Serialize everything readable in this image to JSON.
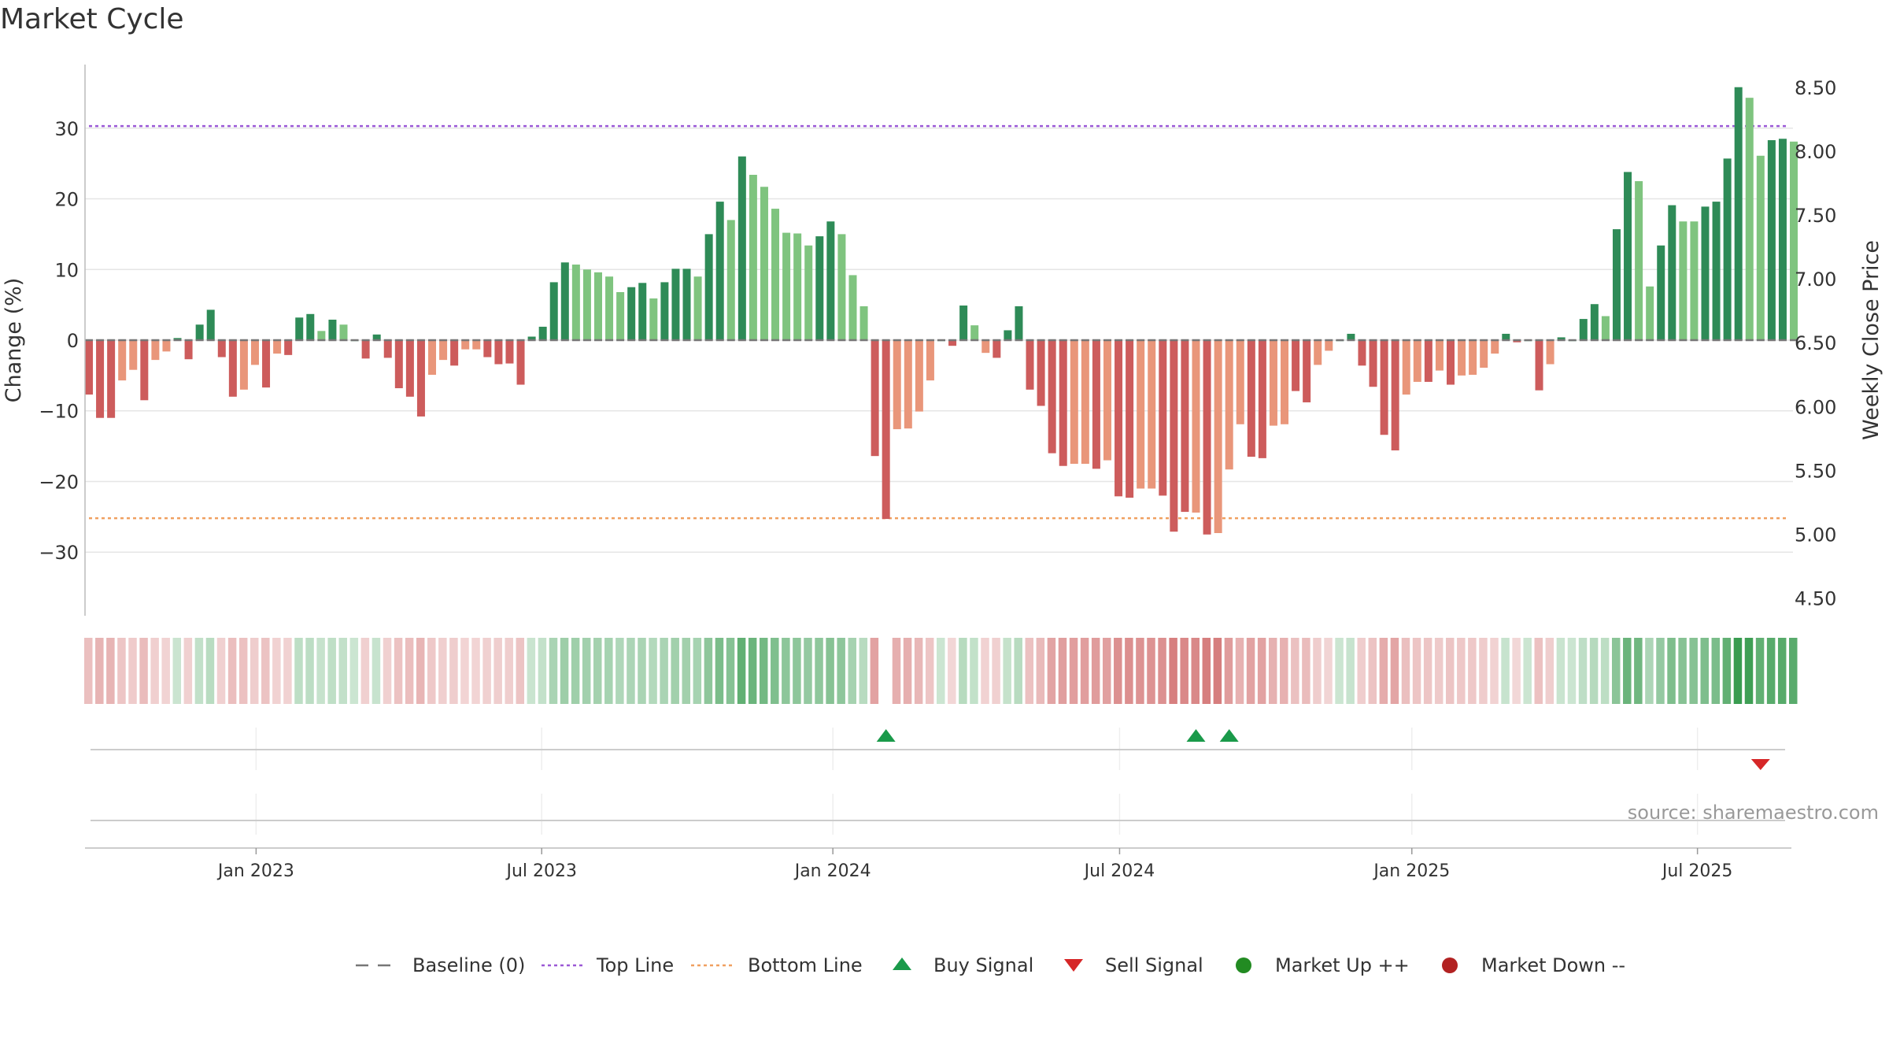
{
  "title": "Market Cycle",
  "source": "source: sharemaestro.com",
  "colors": {
    "dark_green": "#2e8b57",
    "light_green": "#7fc47f",
    "dark_red": "#cd5c5c",
    "light_red": "#e9967a",
    "top_line": "#9b59d6",
    "bottom_line": "#f0a060",
    "buy": "#1a9a4a",
    "sell": "#d62728",
    "market_up": "#228b22",
    "market_down": "#b22222",
    "baseline": "#777777"
  },
  "chart_data": {
    "type": "bar",
    "ylabel": "Change (%)",
    "y2label": "Weekly Close Price",
    "ylim": [
      -39,
      39
    ],
    "y2lim": [
      4.36,
      8.68
    ],
    "yticks": [
      30,
      20,
      10,
      0,
      -10,
      -20,
      -30
    ],
    "ytick_labels": [
      "30",
      "20",
      "10",
      "0",
      "−10",
      "−20",
      "−30"
    ],
    "y2ticks": [
      8.5,
      8.0,
      7.5,
      7.0,
      6.5,
      6.0,
      5.5,
      5.0,
      4.5
    ],
    "y2tick_labels": [
      "8.50",
      "8.00",
      "7.50",
      "7.00",
      "6.50",
      "6.00",
      "5.50",
      "5.00",
      "4.50"
    ],
    "x_start_week_index": 0,
    "xticks": [
      {
        "label": "Jan 2023",
        "week": 15.1
      },
      {
        "label": "Jul 2023",
        "week": 40.9
      },
      {
        "label": "Jan 2024",
        "week": 67.2
      },
      {
        "label": "Jul 2024",
        "week": 93.1
      },
      {
        "label": "Jan 2025",
        "week": 119.5
      },
      {
        "label": "Jul 2025",
        "week": 145.3
      }
    ],
    "top_line": 30.3,
    "bottom_line": -25.2,
    "values": [
      -7.7,
      -11,
      -11,
      -5.7,
      -4.2,
      -8.5,
      -2.8,
      -1.6,
      0.3,
      -2.7,
      2.2,
      4.3,
      -2.4,
      -8,
      -7,
      -3.5,
      -6.7,
      -1.9,
      -2.1,
      3.2,
      3.7,
      1.3,
      2.9,
      2.2,
      0,
      -2.6,
      0.8,
      -2.5,
      -6.8,
      -8,
      -10.8,
      -4.9,
      -2.8,
      -3.6,
      -1.3,
      -1.3,
      -2.4,
      -3.4,
      -3.3,
      -6.3,
      0.5,
      1.9,
      8.2,
      11,
      10.7,
      10,
      9.6,
      9,
      6.8,
      7.5,
      8.1,
      5.9,
      8.2,
      10.1,
      10.1,
      9,
      15,
      19.6,
      17,
      26,
      23.4,
      21.7,
      18.6,
      15.2,
      15.1,
      13.4,
      14.7,
      16.8,
      15,
      9.2,
      4.8,
      -16.4,
      -25.3,
      -12.6,
      -12.5,
      -10.1,
      -5.7,
      0,
      -0.8,
      4.9,
      2.1,
      -1.8,
      -2.5,
      1.4,
      4.8,
      -7,
      -9.3,
      -16,
      -17.8,
      -17.5,
      -17.5,
      -18.2,
      -17,
      -22.1,
      -22.3,
      -21,
      -21,
      -22,
      -27.1,
      -24.3,
      -24.4,
      -27.5,
      -27.3,
      -18.3,
      -11.9,
      -16.5,
      -16.7,
      -12.1,
      -11.9,
      -7.2,
      -8.8,
      -3.5,
      -1.5,
      0,
      0.9,
      -3.6,
      -6.6,
      -13.4,
      -15.6,
      -7.7,
      -5.9,
      -5.9,
      -4.3,
      -6.3,
      -5,
      -4.9,
      -3.9,
      -1.9,
      0.9,
      -0.3,
      0,
      -7.1,
      -3.4,
      0.4,
      0,
      3,
      5.1,
      3.4,
      15.7,
      23.8,
      22.5,
      7.6,
      13.4,
      19.1,
      16.8,
      16.8,
      18.9,
      19.6,
      25.7,
      35.8,
      34.3,
      26.1,
      28.3,
      28.5,
      28.1
    ],
    "bar_colors": [
      "dr",
      "dr",
      "dr",
      "lr",
      "lr",
      "dr",
      "lr",
      "lr",
      "dg",
      "dr",
      "dg",
      "dg",
      "dr",
      "dr",
      "lr",
      "lr",
      "dr",
      "lr",
      "dr",
      "dg",
      "dg",
      "lg",
      "dg",
      "lg",
      "dg",
      "dr",
      "dg",
      "dr",
      "dr",
      "dr",
      "dr",
      "lr",
      "lr",
      "dr",
      "lr",
      "lr",
      "dr",
      "dr",
      "dr",
      "dr",
      "dg",
      "dg",
      "dg",
      "dg",
      "lg",
      "lg",
      "lg",
      "lg",
      "lg",
      "dg",
      "dg",
      "lg",
      "dg",
      "dg",
      "dg",
      "lg",
      "dg",
      "dg",
      "lg",
      "dg",
      "lg",
      "lg",
      "lg",
      "lg",
      "lg",
      "lg",
      "dg",
      "dg",
      "lg",
      "lg",
      "lg",
      "dr",
      "dr",
      "lr",
      "lr",
      "lr",
      "lr",
      "dg",
      "dr",
      "dg",
      "lg",
      "lr",
      "dr",
      "dg",
      "dg",
      "dr",
      "dr",
      "dr",
      "dr",
      "lr",
      "lr",
      "dr",
      "lr",
      "dr",
      "dr",
      "lr",
      "lr",
      "dr",
      "dr",
      "dr",
      "lr",
      "dr",
      "lr",
      "lr",
      "lr",
      "dr",
      "dr",
      "lr",
      "lr",
      "dr",
      "dr",
      "lr",
      "lr",
      "dg",
      "dg",
      "dr",
      "dr",
      "dr",
      "dr",
      "lr",
      "lr",
      "dr",
      "lr",
      "dr",
      "lr",
      "lr",
      "lr",
      "lr",
      "dg",
      "dr",
      "dg",
      "dr",
      "lr",
      "dg",
      "dg",
      "dg",
      "dg",
      "lg",
      "dg",
      "dg",
      "lg",
      "lg",
      "dg",
      "dg",
      "lg",
      "lg",
      "dg",
      "dg",
      "dg",
      "dg",
      "lg",
      "lg",
      "dg",
      "dg",
      "lg"
    ],
    "strip_gap_week": 72,
    "buy_signal_weeks": [
      72,
      100,
      103
    ],
    "sell_signal_weeks": [
      151
    ],
    "legend": [
      {
        "key": "baseline",
        "label": "Baseline (0)"
      },
      {
        "key": "top",
        "label": "Top Line"
      },
      {
        "key": "bottom",
        "label": "Bottom Line"
      },
      {
        "key": "buy",
        "label": "Buy Signal"
      },
      {
        "key": "sell",
        "label": "Sell Signal"
      },
      {
        "key": "up",
        "label": "Market Up ++"
      },
      {
        "key": "down",
        "label": "Market Down --"
      }
    ]
  }
}
